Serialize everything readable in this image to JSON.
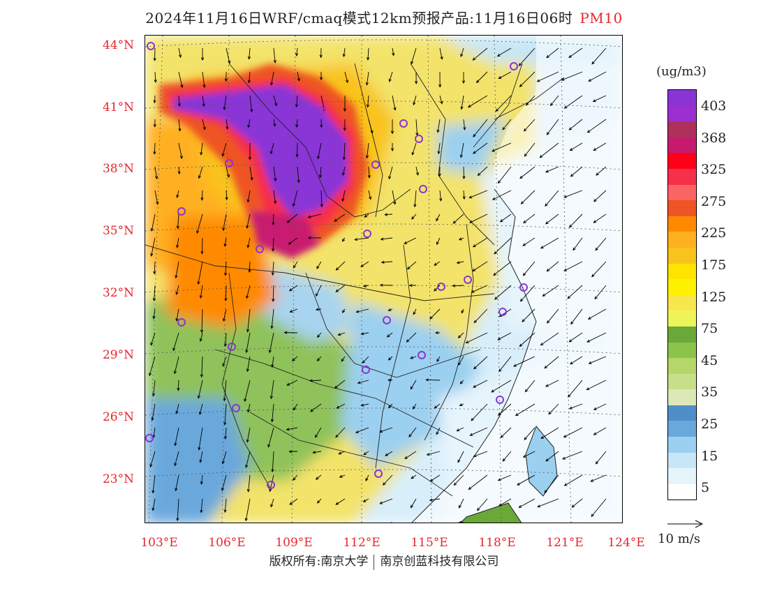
{
  "title": {
    "main": "2024年11月16日WRF/cmaq模式12km预报产品:11月16日06时",
    "variable": "PM10"
  },
  "map": {
    "lat_labels": [
      "44°N",
      "41°N",
      "38°N",
      "35°N",
      "32°N",
      "29°N",
      "26°N",
      "23°N"
    ],
    "lon_labels": [
      "103°E",
      "106°E",
      "109°E",
      "112°E",
      "115°E",
      "118°E",
      "121°E",
      "124°E"
    ]
  },
  "legend": {
    "unit": "(ug/m3)",
    "labels": [
      "403",
      "368",
      "325",
      "275",
      "225",
      "175",
      "125",
      "75",
      "45",
      "35",
      "25",
      "15",
      "5"
    ],
    "colors": [
      "#8a34d6",
      "#9b2fcf",
      "#b0305c",
      "#c71a6f",
      "#ff0019",
      "#f62f4a",
      "#fb6464",
      "#ee5424",
      "#ff8a00",
      "#ffb020",
      "#f9c31e",
      "#ffe400",
      "#fff200",
      "#f8e74c",
      "#eef55a",
      "#6aa83a",
      "#8cc34a",
      "#b5d66a",
      "#c6df88",
      "#dde8b8",
      "#4f8ec8",
      "#6aa8dc",
      "#9bd0f0",
      "#c7e6f7",
      "#e6f4fc",
      "#ffffff"
    ]
  },
  "wind": {
    "scale_label": "10 m/s"
  },
  "footer": {
    "copyright": "版权所有:南京大学",
    "company": "南京创蓝科技有限公司"
  }
}
